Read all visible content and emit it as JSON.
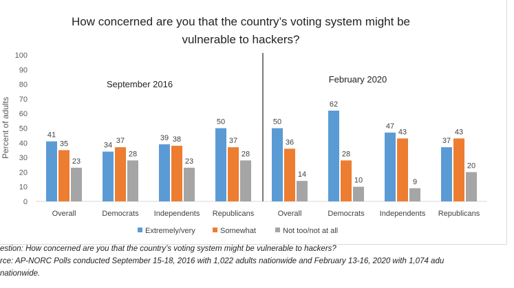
{
  "chart_data": {
    "type": "bar",
    "title": "How concerned are you that the country’s voting system might be vulnerable to hackers?",
    "ylabel": "Percent of adults",
    "xlabel": "",
    "ylim": [
      0,
      100
    ],
    "yticks": [
      0,
      10,
      20,
      30,
      40,
      50,
      60,
      70,
      80,
      90,
      100
    ],
    "grid": false,
    "legend_position": "bottom",
    "groups": [
      {
        "label": "September 2016",
        "categories": [
          "Overall",
          "Democrats",
          "Independents",
          "Republicans"
        ]
      },
      {
        "label": "February 2020",
        "categories": [
          "Overall",
          "Democrats",
          "Independents",
          "Republicans"
        ]
      }
    ],
    "categories": [
      "Overall",
      "Democrats",
      "Independents",
      "Republicans",
      "Overall",
      "Democrats",
      "Independents",
      "Republicans"
    ],
    "series": [
      {
        "name": "Extremely/very",
        "color": "#5b9bd5",
        "values": [
          41,
          34,
          39,
          50,
          50,
          62,
          47,
          37
        ]
      },
      {
        "name": "Somewhat",
        "color": "#ed7d31",
        "values": [
          35,
          37,
          38,
          37,
          36,
          28,
          43,
          43
        ]
      },
      {
        "name": "Not too/not at all",
        "color": "#a5a5a5",
        "values": [
          23,
          28,
          23,
          28,
          14,
          10,
          9,
          20
        ]
      }
    ]
  },
  "notes": {
    "question": "estion: How concerned are you that the country’s voting system might be vulnerable to hackers?",
    "source_line1": "rce: AP-NORC Polls conducted September 15-18, 2016 with 1,022 adults nationwide and February 13-16, 2020 with 1,074 adu",
    "source_line2": "nationwide."
  }
}
